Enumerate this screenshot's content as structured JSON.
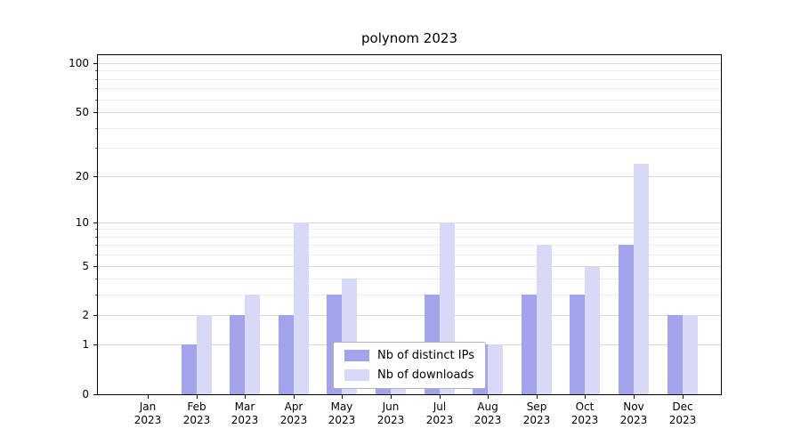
{
  "title": "polynom 2023",
  "chart_data": {
    "type": "bar",
    "title": "polynom 2023",
    "categories": [
      "Jan 2023",
      "Feb 2023",
      "Mar 2023",
      "Apr 2023",
      "May 2023",
      "Jun 2023",
      "Jul 2023",
      "Aug 2023",
      "Sep 2023",
      "Oct 2023",
      "Nov 2023",
      "Dec 2023"
    ],
    "series": [
      {
        "name": "Nb of distinct IPs",
        "color": "#a3a3ec",
        "values": [
          0,
          1,
          2,
          2,
          3,
          1,
          3,
          1,
          3,
          3,
          7,
          2
        ]
      },
      {
        "name": "Nb of downloads",
        "color": "#d8d8f7",
        "values": [
          0,
          2,
          3,
          10,
          4,
          1,
          10,
          1,
          7,
          5,
          24,
          2
        ]
      }
    ],
    "xlabel": "",
    "ylabel": "",
    "yscale": "log1p",
    "y_major_ticks": [
      0,
      1,
      2,
      5,
      10,
      20,
      50,
      100
    ],
    "y_minor_ticks": [
      3,
      4,
      6,
      7,
      8,
      9,
      30,
      40,
      60,
      70,
      80,
      90
    ],
    "ylim": [
      0,
      113
    ],
    "grid": true,
    "legend_position": "lower center"
  },
  "legend": {
    "items": [
      {
        "label": "Nb of distinct IPs"
      },
      {
        "label": "Nb of downloads"
      }
    ]
  }
}
